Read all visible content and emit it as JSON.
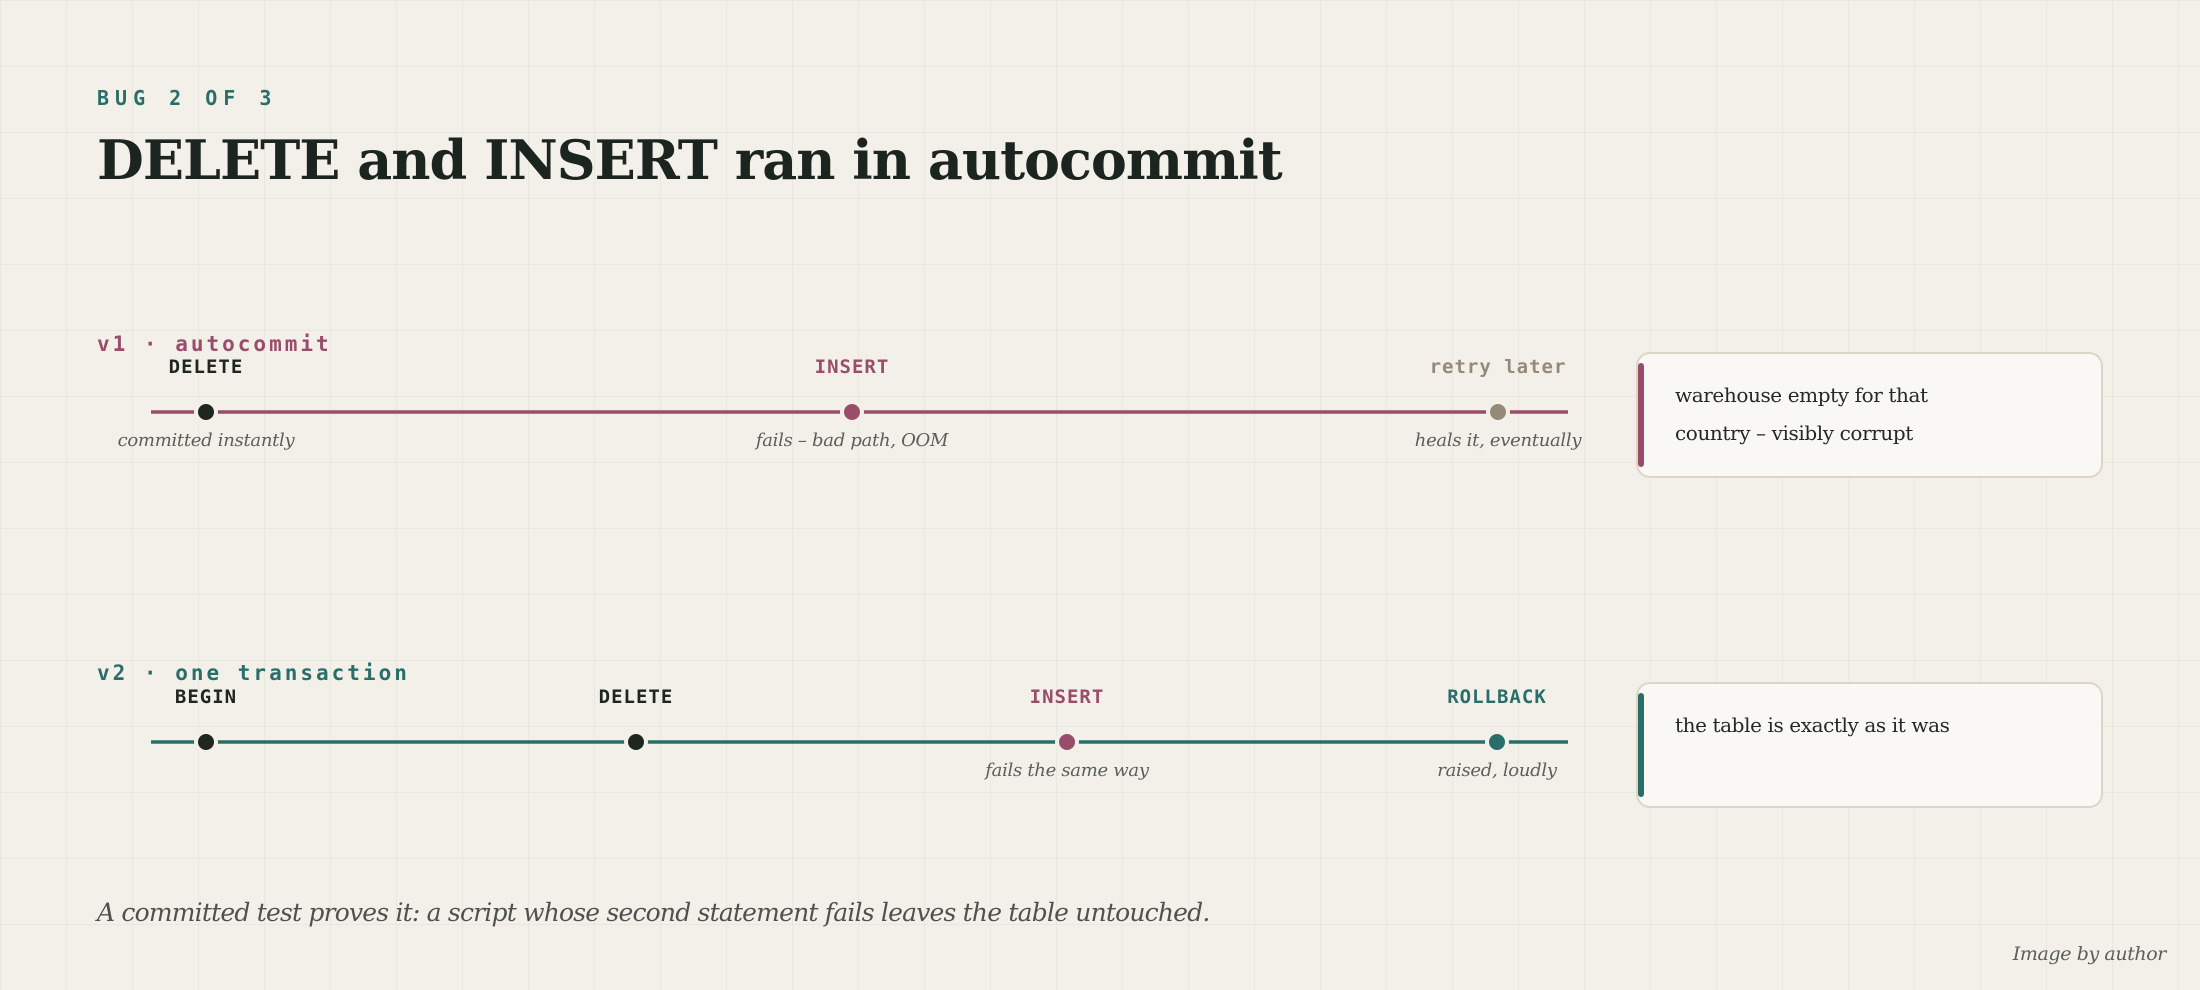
{
  "header": {
    "eyebrow": "BUG 2 OF 3",
    "title": "DELETE and INSERT ran in autocommit"
  },
  "colors": {
    "rose": "#9a4d6a",
    "teal": "#2a6e6a",
    "ink": "#1f2620",
    "muted": "#958a78"
  },
  "v1": {
    "label": "v1 · autocommit",
    "steps": [
      {
        "label": "DELETE",
        "note": "committed instantly",
        "tone": "ink"
      },
      {
        "label": "INSERT",
        "note": "fails – bad path, OOM",
        "tone": "rose"
      },
      {
        "label": "retry later",
        "note": "heals it, eventually",
        "tone": "muted"
      }
    ],
    "outcome": "warehouse empty for that country – visibly corrupt"
  },
  "v2": {
    "label": "v2 · one transaction",
    "steps": [
      {
        "label": "BEGIN",
        "note": "",
        "tone": "ink"
      },
      {
        "label": "DELETE",
        "note": "",
        "tone": "ink"
      },
      {
        "label": "INSERT",
        "note": "fails the same way",
        "tone": "rose"
      },
      {
        "label": "ROLLBACK",
        "note": "raised, loudly",
        "tone": "teal"
      }
    ],
    "outcome": "the table is exactly as it was"
  },
  "footer": {
    "caption": "A committed test proves it: a script whose second statement fails leaves the table untouched.",
    "credit": "Image by author"
  }
}
